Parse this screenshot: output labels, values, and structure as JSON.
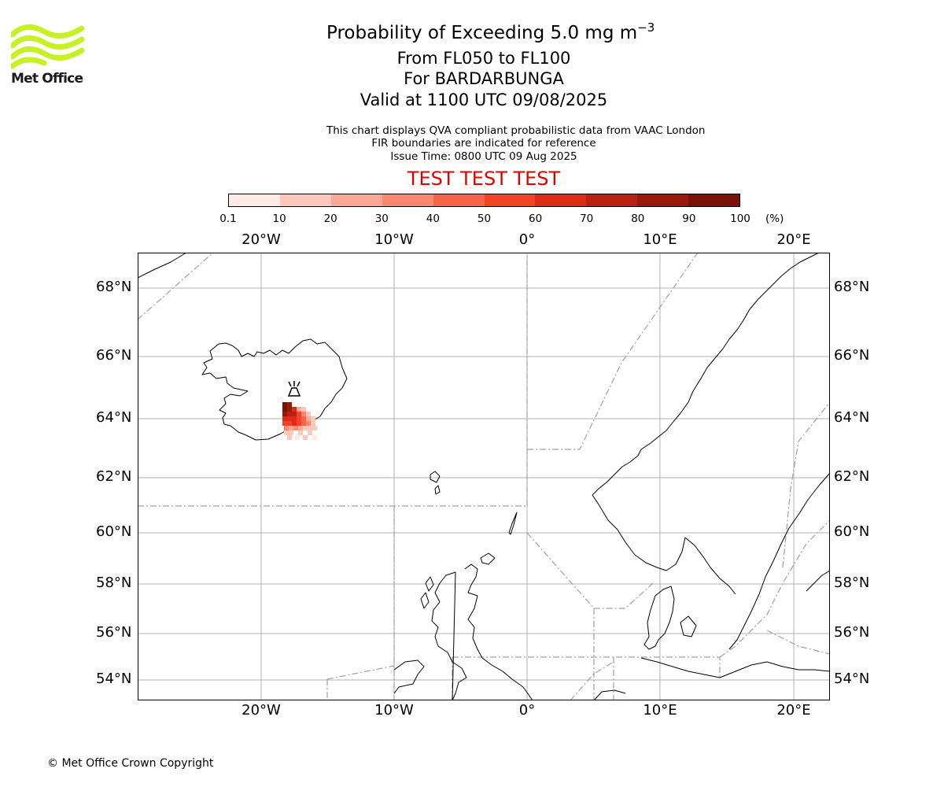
{
  "header": {
    "title_prefix": "Probability of Exceeding 5.0 mg m",
    "title_exponent": "−3",
    "level_range": "From FL050 to FL100",
    "volcano": "For BARDARBUNGA",
    "valid_time": "Valid at 1100 UTC 09/08/2025"
  },
  "notes": {
    "line1": "This chart displays QVA compliant probabilistic data from VAAC London",
    "line2": "FIR boundaries are indicated for reference",
    "line3": "Issue Time: 0800 UTC 09 Aug 2025"
  },
  "banner": {
    "text": "TEST TEST TEST",
    "color": "#e00000"
  },
  "logo": {
    "text": "Met Office",
    "wave_color": "#c6f225"
  },
  "colorbar": {
    "ticks": [
      "0.1",
      "10",
      "20",
      "30",
      "40",
      "50",
      "60",
      "70",
      "80",
      "90",
      "100"
    ],
    "unit": "(%)",
    "colors": [
      "#ffeae4",
      "#fcc8bb",
      "#fba896",
      "#fb8770",
      "#f7634b",
      "#f24326",
      "#dc2c19",
      "#bc2013",
      "#9a170c",
      "#7a1008"
    ]
  },
  "map": {
    "lon_labels": [
      "20°W",
      "10°W",
      "0°",
      "10°E",
      "20°E"
    ],
    "lat_labels": [
      "68°N",
      "66°N",
      "64°N",
      "62°N",
      "60°N",
      "58°N",
      "56°N",
      "54°N"
    ],
    "volcano_icon": "volcano-icon",
    "colors": {
      "coast": "#000000",
      "grid": "#b0b0b0",
      "fir": "#a0a0a0"
    }
  },
  "footer": {
    "copyright": "© Met Office Crown Copyright"
  }
}
